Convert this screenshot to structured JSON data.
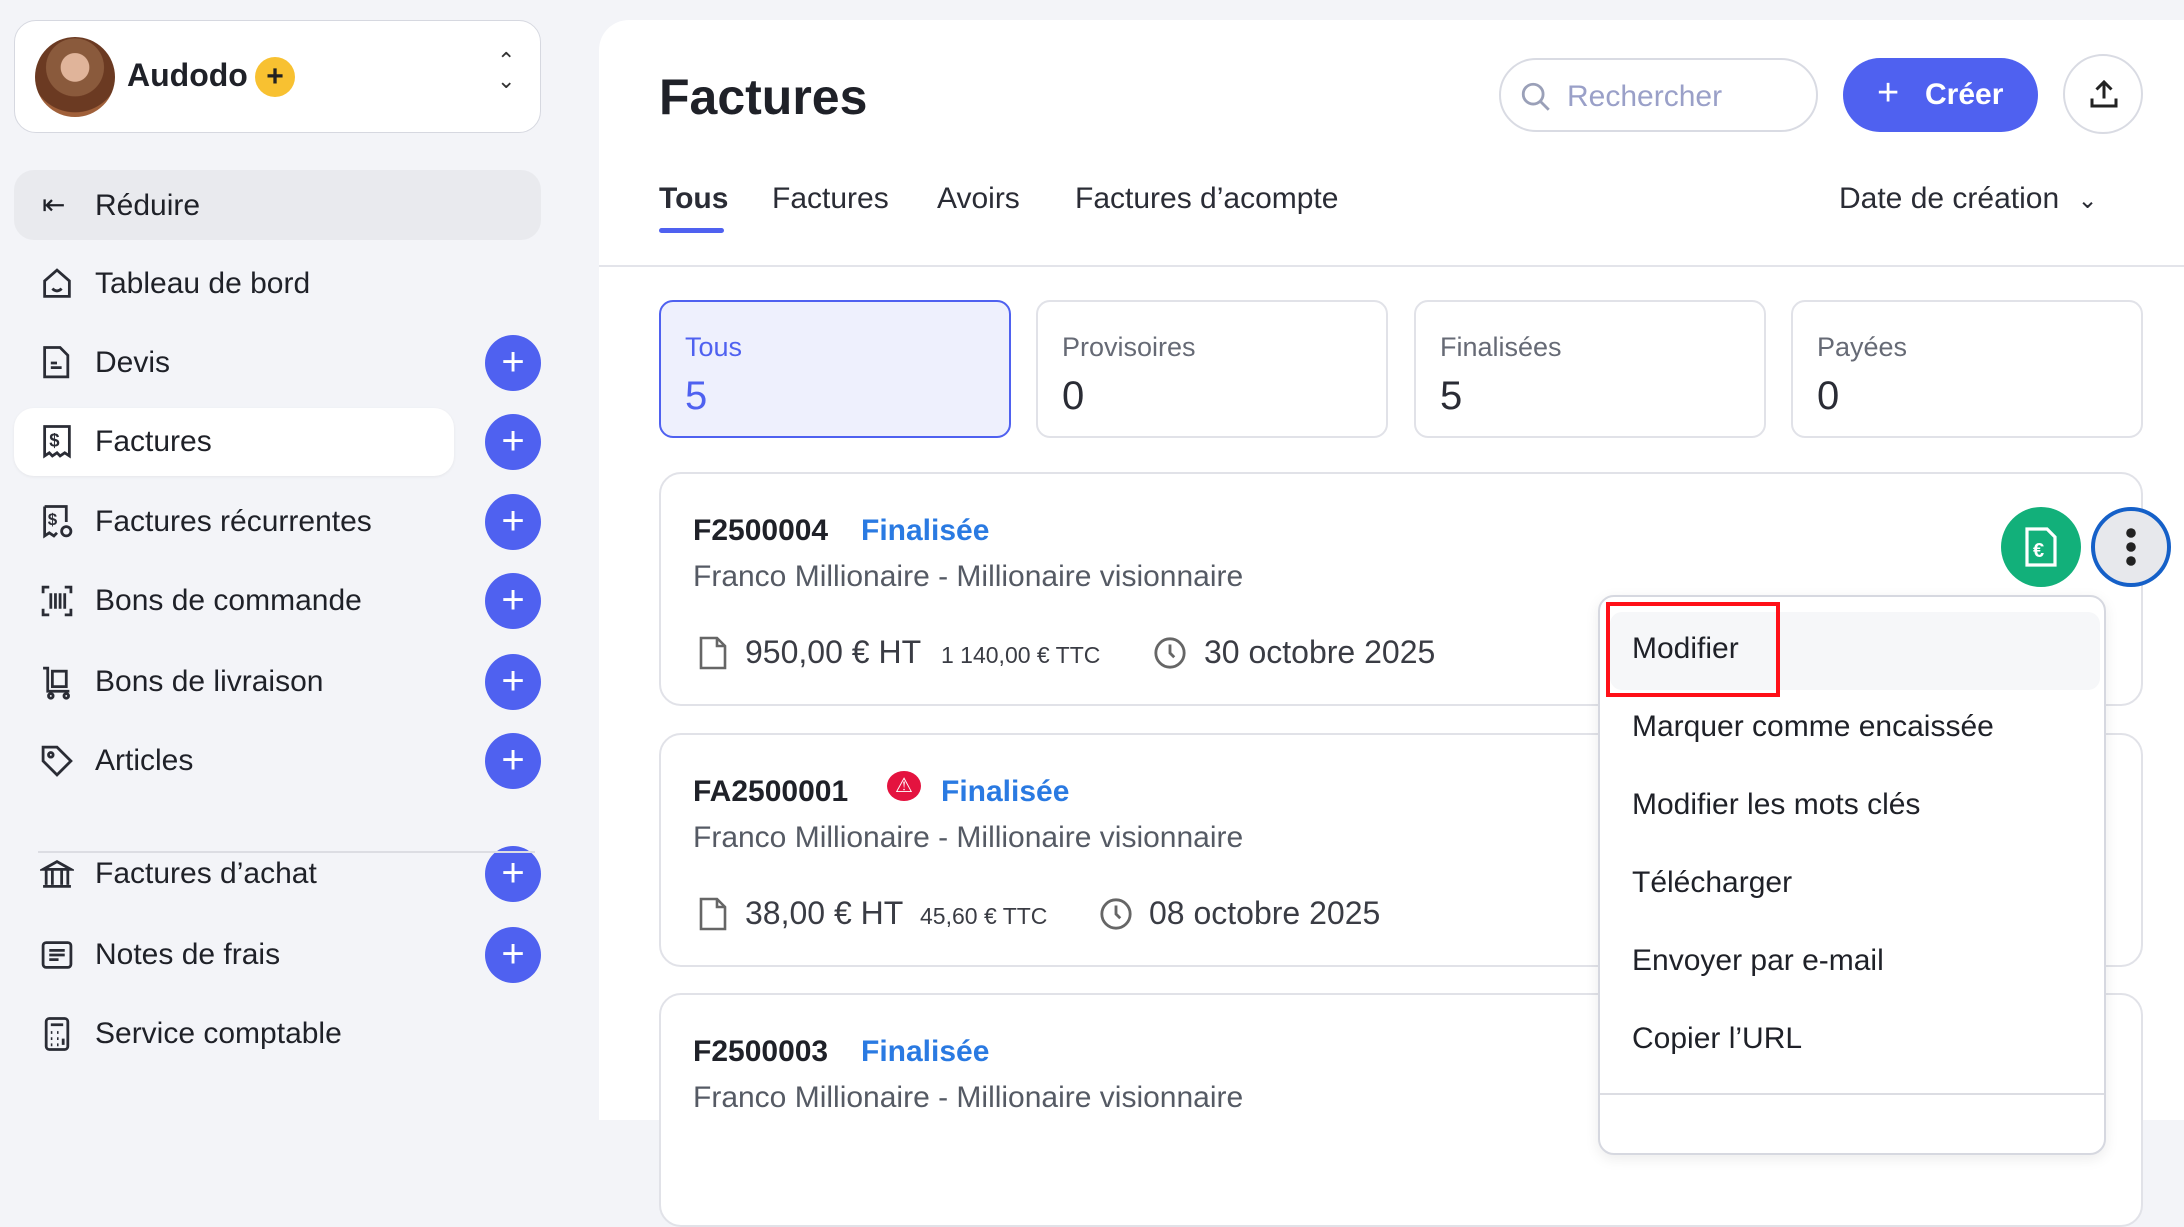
{
  "profile": {
    "name": "Audodo",
    "badge": "+",
    "switch_icon": "chevron-up-down-icon"
  },
  "sidebar": {
    "collapse_label": "Réduire",
    "items": [
      {
        "label": "Tableau de bord",
        "icon": "home-icon",
        "add": false
      },
      {
        "label": "Devis",
        "icon": "document-icon",
        "add": true
      },
      {
        "label": "Factures",
        "icon": "invoice-icon",
        "add": true,
        "active": true
      },
      {
        "label": "Factures récurrentes",
        "icon": "recurring-invoice-icon",
        "add": true
      },
      {
        "label": "Bons de commande",
        "icon": "barcode-icon",
        "add": true
      },
      {
        "label": "Bons de livraison",
        "icon": "delivery-cart-icon",
        "add": true
      },
      {
        "label": "Articles",
        "icon": "tag-icon",
        "add": true
      },
      {
        "label": "Factures d’achat",
        "icon": "bank-icon",
        "add": true
      },
      {
        "label": "Notes de frais",
        "icon": "receipt-list-icon",
        "add": true
      },
      {
        "label": "Service comptable",
        "icon": "calculator-icon",
        "add": false
      }
    ],
    "add_label": "+"
  },
  "header": {
    "title": "Factures",
    "search_placeholder": "Rechercher",
    "create_label": "Créer",
    "create_plus": "+"
  },
  "tabs": [
    {
      "label": "Tous",
      "active": true
    },
    {
      "label": "Factures"
    },
    {
      "label": "Avoirs"
    },
    {
      "label": "Factures d’acompte"
    }
  ],
  "sort": {
    "label": "Date de création"
  },
  "stats": [
    {
      "label": "Tous",
      "value": "5",
      "active": true
    },
    {
      "label": "Provisoires",
      "value": "0"
    },
    {
      "label": "Finalisées",
      "value": "5"
    },
    {
      "label": "Payées",
      "value": "0"
    }
  ],
  "invoices": [
    {
      "id": "F2500004",
      "status": "Finalisée",
      "client": "Franco Millionaire - Millionaire visionnaire",
      "ht": "950,00 € HT",
      "ttc": "1 140,00 € TTC",
      "date": "30 octobre 2025",
      "warning": false
    },
    {
      "id": "FA2500001",
      "status": "Finalisée",
      "client": "Franco Millionaire - Millionaire visionnaire",
      "ht": "38,00 € HT",
      "ttc": "45,60 € TTC",
      "date": "08 octobre 2025",
      "warning": true
    },
    {
      "id": "F2500003",
      "status": "Finalisée",
      "client": "Franco Millionaire - Millionaire visionnaire"
    }
  ],
  "menu": {
    "items": [
      "Modifier",
      "Marquer comme encaissée",
      "Modifier les mots clés",
      "Télécharger",
      "Envoyer par e-mail",
      "Copier l’URL"
    ]
  },
  "colors": {
    "accent": "#4f61f0",
    "status": "#2a7ae2",
    "pay_button": "#12b07a",
    "warning": "#e4133f",
    "highlight": "#ff1018"
  }
}
